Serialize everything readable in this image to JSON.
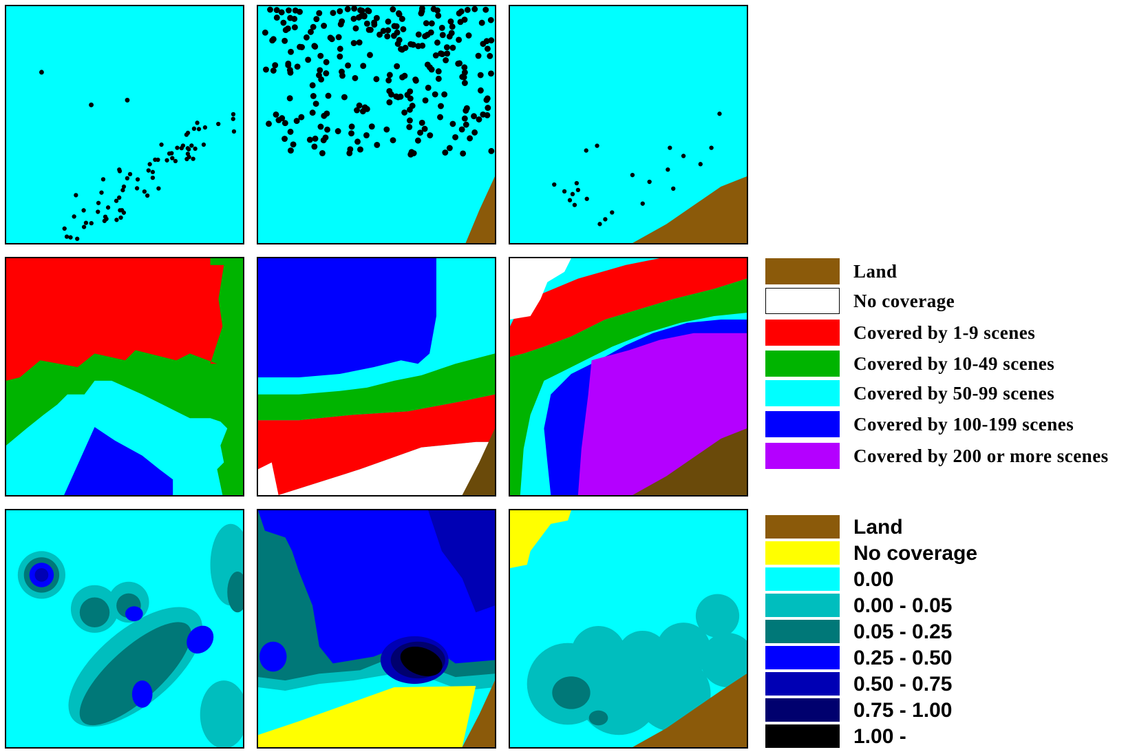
{
  "colors": {
    "land": "#8b5a0a",
    "land_dark": "#6a4a0a",
    "water": "#00ffff",
    "no_coverage_white": "#ffffff",
    "no_coverage_yellow": "#ffff00",
    "scenes_1_9": "#ff0000",
    "scenes_10_49": "#00b400",
    "scenes_50_99": "#00ffff",
    "scenes_100_199": "#0000ff",
    "scenes_200_plus": "#b400ff",
    "prob_0": "#00ffff",
    "prob_0_005": "#00bebe",
    "prob_005_025": "#007878",
    "prob_025_050": "#0000ff",
    "prob_050_075": "#0000b4",
    "prob_075_100": "#00006e",
    "prob_100": "#000000"
  },
  "legend_scenes": [
    {
      "label": "Land",
      "color": "#8b5a0a"
    },
    {
      "label": "No coverage",
      "color": "#ffffff"
    },
    {
      "label": "Covered by 1-9 scenes",
      "color": "#ff0000"
    },
    {
      "label": "Covered by 10-49 scenes",
      "color": "#00b400"
    },
    {
      "label": "Covered by 50-99 scenes",
      "color": "#00ffff"
    },
    {
      "label": "Covered by 100-199 scenes",
      "color": "#0000ff"
    },
    {
      "label": "Covered by 200 or more scenes",
      "color": "#b400ff"
    }
  ],
  "legend_probability": [
    {
      "label": "Land",
      "color": "#8b5a0a"
    },
    {
      "label": "No coverage",
      "color": "#ffff00"
    },
    {
      "label": "0.00",
      "color": "#00ffff"
    },
    {
      "label": "0.00 - 0.05",
      "color": "#00bebe"
    },
    {
      "label": "0.05 - 0.25",
      "color": "#007878"
    },
    {
      "label": "0.25 - 0.50",
      "color": "#0000ff"
    },
    {
      "label": "0.50 - 0.75",
      "color": "#0000b4"
    },
    {
      "label": "0.75 - 1.00",
      "color": "#00006e"
    },
    {
      "label": "1.00 -",
      "color": "#000000"
    }
  ]
}
